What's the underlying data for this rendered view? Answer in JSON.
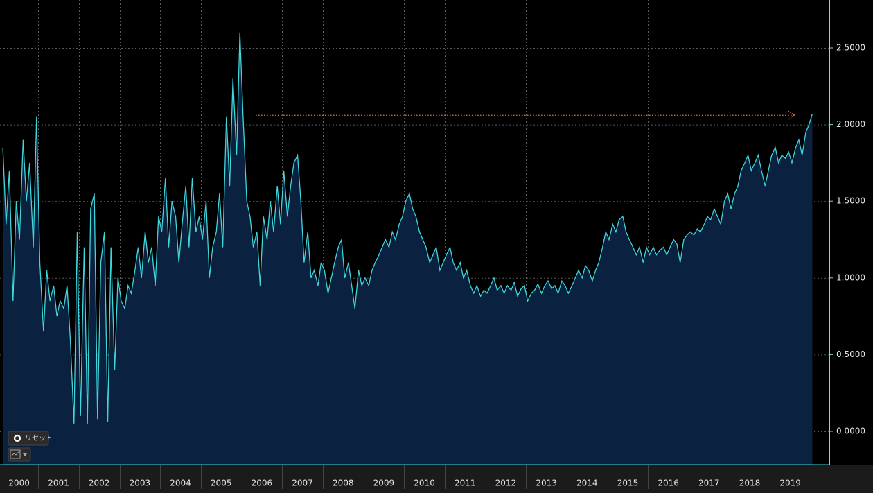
{
  "chart_data": {
    "type": "area",
    "x": [
      2000.13,
      2000.21,
      2000.29,
      2000.38,
      2000.46,
      2000.54,
      2000.63,
      2000.71,
      2000.79,
      2000.88,
      2000.96,
      2001.04,
      2001.13,
      2001.21,
      2001.29,
      2001.38,
      2001.46,
      2001.54,
      2001.63,
      2001.71,
      2001.79,
      2001.88,
      2001.96,
      2002.04,
      2002.13,
      2002.21,
      2002.29,
      2002.38,
      2002.46,
      2002.54,
      2002.63,
      2002.71,
      2002.79,
      2002.88,
      2002.96,
      2003.04,
      2003.13,
      2003.21,
      2003.29,
      2003.38,
      2003.46,
      2003.54,
      2003.63,
      2003.71,
      2003.79,
      2003.88,
      2003.96,
      2004.04,
      2004.13,
      2004.21,
      2004.29,
      2004.38,
      2004.46,
      2004.54,
      2004.63,
      2004.71,
      2004.79,
      2004.88,
      2004.96,
      2005.04,
      2005.13,
      2005.21,
      2005.29,
      2005.38,
      2005.46,
      2005.54,
      2005.63,
      2005.71,
      2005.79,
      2005.88,
      2005.96,
      2006.04,
      2006.13,
      2006.21,
      2006.29,
      2006.38,
      2006.46,
      2006.54,
      2006.63,
      2006.71,
      2006.79,
      2006.88,
      2006.96,
      2007.04,
      2007.13,
      2007.21,
      2007.29,
      2007.38,
      2007.46,
      2007.54,
      2007.63,
      2007.71,
      2007.79,
      2007.88,
      2007.96,
      2008.04,
      2008.13,
      2008.21,
      2008.29,
      2008.38,
      2008.46,
      2008.54,
      2008.63,
      2008.71,
      2008.79,
      2008.88,
      2008.96,
      2009.04,
      2009.13,
      2009.21,
      2009.29,
      2009.38,
      2009.46,
      2009.54,
      2009.63,
      2009.71,
      2009.79,
      2009.88,
      2009.96,
      2010.04,
      2010.13,
      2010.21,
      2010.29,
      2010.38,
      2010.46,
      2010.54,
      2010.63,
      2010.71,
      2010.79,
      2010.88,
      2010.96,
      2011.04,
      2011.13,
      2011.21,
      2011.29,
      2011.38,
      2011.46,
      2011.54,
      2011.63,
      2011.71,
      2011.79,
      2011.88,
      2011.96,
      2012.04,
      2012.13,
      2012.21,
      2012.29,
      2012.38,
      2012.46,
      2012.54,
      2012.63,
      2012.71,
      2012.79,
      2012.88,
      2012.96,
      2013.04,
      2013.13,
      2013.21,
      2013.29,
      2013.38,
      2013.46,
      2013.54,
      2013.63,
      2013.71,
      2013.79,
      2013.88,
      2013.96,
      2014.04,
      2014.13,
      2014.21,
      2014.29,
      2014.38,
      2014.46,
      2014.54,
      2014.63,
      2014.71,
      2014.79,
      2014.88,
      2014.96,
      2015.04,
      2015.13,
      2015.21,
      2015.29,
      2015.38,
      2015.46,
      2015.54,
      2015.63,
      2015.71,
      2015.79,
      2015.88,
      2015.96,
      2016.04,
      2016.13,
      2016.21,
      2016.29,
      2016.38,
      2016.46,
      2016.54,
      2016.63,
      2016.71,
      2016.79,
      2016.88,
      2016.96,
      2017.04,
      2017.13,
      2017.21,
      2017.29,
      2017.38,
      2017.46,
      2017.54,
      2017.63,
      2017.71,
      2017.79,
      2017.88,
      2017.96,
      2018.04,
      2018.13,
      2018.21,
      2018.29,
      2018.38,
      2018.46,
      2018.54,
      2018.63,
      2018.71,
      2018.79,
      2018.88,
      2018.96,
      2019.04,
      2019.13,
      2019.21,
      2019.29,
      2019.38,
      2019.46,
      2019.54,
      2019.63,
      2019.71,
      2019.79,
      2019.88,
      2019.96,
      2020.04
    ],
    "series": [
      {
        "color": "#3fd6dc",
        "fill": "#0a213f",
        "values": [
          1.85,
          1.35,
          1.7,
          0.85,
          1.5,
          1.25,
          1.9,
          1.5,
          1.75,
          1.2,
          2.05,
          1.1,
          0.65,
          1.05,
          0.85,
          0.95,
          0.75,
          0.85,
          0.8,
          0.95,
          0.6,
          0.05,
          1.3,
          0.1,
          1.2,
          0.05,
          1.45,
          1.55,
          0.08,
          1.1,
          1.3,
          0.06,
          1.2,
          0.4,
          1.0,
          0.85,
          0.8,
          0.95,
          0.9,
          1.05,
          1.2,
          1.0,
          1.3,
          1.1,
          1.2,
          0.95,
          1.4,
          1.3,
          1.65,
          1.2,
          1.5,
          1.4,
          1.1,
          1.35,
          1.6,
          1.2,
          1.65,
          1.3,
          1.4,
          1.25,
          1.5,
          1.0,
          1.2,
          1.3,
          1.55,
          1.2,
          2.05,
          1.6,
          2.3,
          1.8,
          2.6,
          2.05,
          1.5,
          1.4,
          1.2,
          1.3,
          0.95,
          1.4,
          1.25,
          1.5,
          1.3,
          1.6,
          1.35,
          1.7,
          1.4,
          1.6,
          1.75,
          1.8,
          1.5,
          1.1,
          1.3,
          1.0,
          1.05,
          0.95,
          1.1,
          1.05,
          0.9,
          1.0,
          1.1,
          1.2,
          1.25,
          1.0,
          1.1,
          0.95,
          0.8,
          1.05,
          0.95,
          1.0,
          0.95,
          1.05,
          1.1,
          1.15,
          1.2,
          1.25,
          1.2,
          1.3,
          1.25,
          1.35,
          1.4,
          1.5,
          1.55,
          1.45,
          1.4,
          1.3,
          1.25,
          1.2,
          1.1,
          1.15,
          1.2,
          1.05,
          1.1,
          1.15,
          1.2,
          1.1,
          1.05,
          1.1,
          1.0,
          1.05,
          0.95,
          0.9,
          0.95,
          0.88,
          0.92,
          0.9,
          0.95,
          1.0,
          0.92,
          0.95,
          0.9,
          0.95,
          0.92,
          0.97,
          0.88,
          0.93,
          0.95,
          0.85,
          0.9,
          0.92,
          0.96,
          0.9,
          0.95,
          0.98,
          0.93,
          0.95,
          0.9,
          0.98,
          0.95,
          0.9,
          0.95,
          1.0,
          1.05,
          1.0,
          1.08,
          1.05,
          0.98,
          1.05,
          1.1,
          1.2,
          1.3,
          1.25,
          1.35,
          1.3,
          1.38,
          1.4,
          1.3,
          1.25,
          1.2,
          1.15,
          1.2,
          1.1,
          1.2,
          1.15,
          1.2,
          1.15,
          1.18,
          1.2,
          1.15,
          1.2,
          1.25,
          1.22,
          1.1,
          1.25,
          1.28,
          1.3,
          1.28,
          1.32,
          1.3,
          1.35,
          1.4,
          1.38,
          1.45,
          1.4,
          1.35,
          1.5,
          1.55,
          1.45,
          1.55,
          1.6,
          1.7,
          1.75,
          1.8,
          1.7,
          1.75,
          1.8,
          1.7,
          1.6,
          1.7,
          1.8,
          1.85,
          1.75,
          1.8,
          1.78,
          1.82,
          1.75,
          1.85,
          1.9,
          1.8,
          1.95,
          2.0,
          2.07
        ]
      }
    ],
    "xlim": [
      2000.06,
      2020.46
    ],
    "xticks": [
      2000,
      2001,
      2002,
      2003,
      2004,
      2005,
      2006,
      2007,
      2008,
      2009,
      2010,
      2011,
      2012,
      2013,
      2014,
      2015,
      2016,
      2017,
      2018,
      2019
    ],
    "ylim": [
      -0.217,
      2.812
    ],
    "yticks": [
      {
        "value": 0,
        "label": "0.0000"
      },
      {
        "value": 0.5,
        "label": "0.5000"
      },
      {
        "value": 1,
        "label": "1.0000"
      },
      {
        "value": 1.5,
        "label": "1.5000"
      },
      {
        "value": 2,
        "label": "2.0000"
      },
      {
        "value": 2.5,
        "label": "2.5000"
      }
    ],
    "grid": true,
    "reference_line": {
      "value": 2.06,
      "x_range": [
        2006.35,
        2019.62
      ],
      "color": "#e8643c"
    },
    "reset_label": "リセット"
  }
}
